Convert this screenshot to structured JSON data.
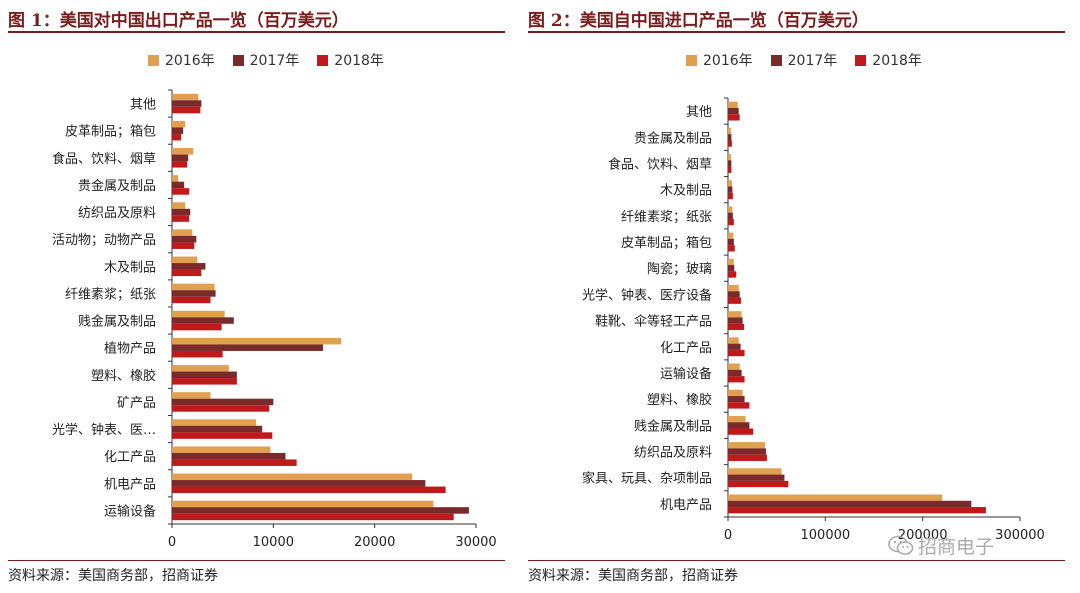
{
  "colors": {
    "y2016": "#e0a050",
    "y2017": "#7a2a2a",
    "y2018": "#c0191c",
    "title": "#7a1c1c"
  },
  "legend": [
    "2016年",
    "2017年",
    "2018年"
  ],
  "source_text": "资料来源：美国商务部，招商证券",
  "watermark": "招商电子",
  "chart_data": [
    {
      "type": "bar",
      "orientation": "horizontal",
      "title": "图 1：美国对中国出口产品一览（百万美元）",
      "categories": [
        "其他",
        "皮革制品；箱包",
        "食品、饮料、烟草",
        "贵金属及制品",
        "纺织品及原料",
        "活动物；动物产品",
        "木及制品",
        "纤维素浆；纸张",
        "贱金属及制品",
        "植物产品",
        "塑料、橡胶",
        "矿产品",
        "光学、钟表、医…",
        "化工产品",
        "机电产品",
        "运输设备"
      ],
      "series": [
        {
          "name": "2016年",
          "values": [
            2600,
            1300,
            2100,
            600,
            1300,
            2000,
            2500,
            4200,
            5200,
            16700,
            5600,
            3800,
            8300,
            9700,
            23700,
            25800
          ]
        },
        {
          "name": "2017年",
          "values": [
            2900,
            1100,
            1600,
            1200,
            1800,
            2400,
            3300,
            4300,
            6100,
            14900,
            6400,
            10000,
            8900,
            11200,
            25000,
            29300
          ]
        },
        {
          "name": "2018年",
          "values": [
            2800,
            900,
            1500,
            1700,
            1700,
            2200,
            2900,
            3800,
            4900,
            5000,
            6400,
            9600,
            9900,
            12300,
            27000,
            27800
          ]
        }
      ],
      "xlim": [
        0,
        30000
      ],
      "xticks": [
        "0",
        "10000",
        "20000",
        "30000"
      ]
    },
    {
      "type": "bar",
      "orientation": "horizontal",
      "title": "图 2：美国自中国进口产品一览（百万美元）",
      "categories": [
        "其他",
        "贵金属及制品",
        "食品、饮料、烟草",
        "木及制品",
        "纤维素浆；纸张",
        "皮革制品；箱包",
        "陶瓷；玻璃",
        "光学、钟表、医疗设备",
        "鞋靴、伞等轻工产品",
        "化工产品",
        "运输设备",
        "塑料、橡胶",
        "贱金属及制品",
        "纺织品及原料",
        "家具、玩具、杂项制品",
        "机电产品"
      ],
      "series": [
        {
          "name": "2016年",
          "values": [
            10000,
            3000,
            3000,
            4000,
            4500,
            5500,
            6000,
            11000,
            14000,
            11000,
            12000,
            15000,
            18000,
            38000,
            55000,
            220000
          ]
        },
        {
          "name": "2017年",
          "values": [
            11000,
            3500,
            3500,
            4500,
            5000,
            6000,
            6500,
            12000,
            15000,
            13000,
            14000,
            17000,
            22000,
            39000,
            58000,
            250000
          ]
        },
        {
          "name": "2018年",
          "values": [
            12000,
            4000,
            3500,
            5000,
            6000,
            7000,
            8500,
            13500,
            16500,
            17000,
            17000,
            22000,
            26000,
            40000,
            62000,
            265000
          ]
        }
      ],
      "xlim": [
        0,
        300000
      ],
      "xticks": [
        "0",
        "100000",
        "200000",
        "300000"
      ]
    }
  ]
}
